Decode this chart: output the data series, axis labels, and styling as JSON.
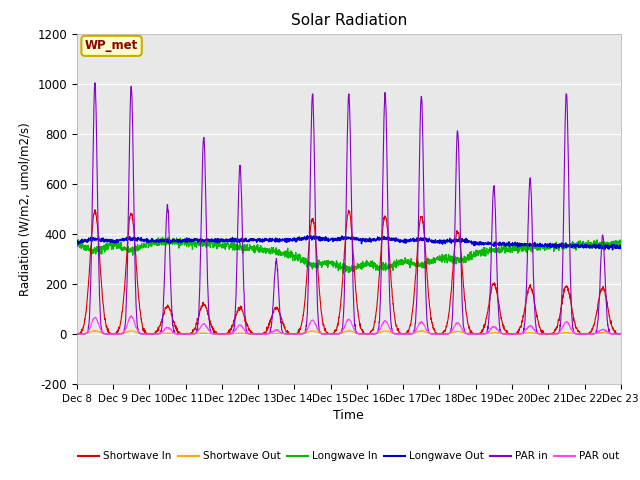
{
  "title": "Solar Radiation",
  "ylabel": "Radiation (W/m2, umol/m2/s)",
  "xlabel": "Time",
  "ylim": [
    -200,
    1200
  ],
  "yticks": [
    -200,
    0,
    200,
    400,
    600,
    800,
    1000,
    1200
  ],
  "x_labels": [
    "Dec 8",
    "Dec 9",
    "Dec 10",
    "Dec 11",
    "Dec 12",
    "Dec 13",
    "Dec 14",
    "Dec 15",
    "Dec 16",
    "Dec 17",
    "Dec 18",
    "Dec 19",
    "Dec 20",
    "Dec 21",
    "Dec 22",
    "Dec 23"
  ],
  "annotation_text": "WP_met",
  "bg_color": "#e8e8e8",
  "colors": {
    "shortwave_in": "#dd0000",
    "shortwave_out": "#ffaa00",
    "longwave_in": "#00bb00",
    "longwave_out": "#0000cc",
    "par_in": "#8800cc",
    "par_out": "#ff44ff"
  },
  "legend": [
    {
      "label": "Shortwave In",
      "color": "#dd0000"
    },
    {
      "label": "Shortwave Out",
      "color": "#ffaa00"
    },
    {
      "label": "Longwave In",
      "color": "#00bb00"
    },
    {
      "label": "Longwave Out",
      "color": "#0000cc"
    },
    {
      "label": "PAR in",
      "color": "#8800cc"
    },
    {
      "label": "PAR out",
      "color": "#ff44ff"
    }
  ],
  "figsize": [
    6.4,
    4.8
  ],
  "dpi": 100
}
